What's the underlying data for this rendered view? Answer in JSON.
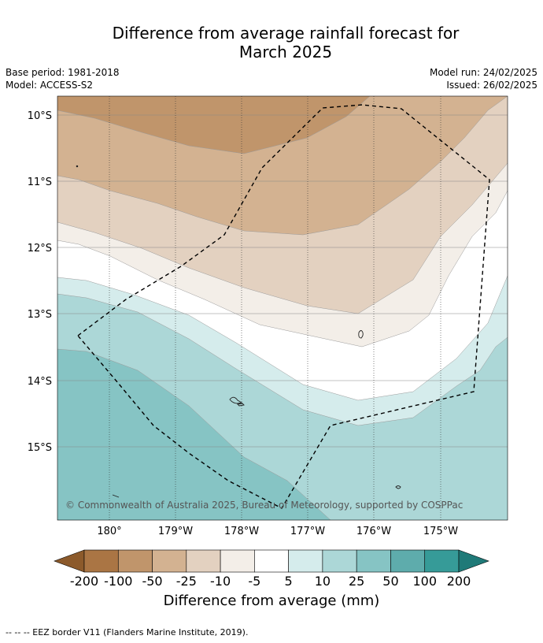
{
  "title_line1": "Difference from average rainfall forecast for",
  "title_line2": "March 2025",
  "base_period": "Base period: 1981-2018",
  "model": "Model: ACCESS-S2",
  "model_run": "Model run: 24/02/2025",
  "issued": "Issued: 26/02/2025",
  "latitudes": [
    "10°S",
    "11°S",
    "12°S",
    "13°S",
    "14°S",
    "15°S"
  ],
  "longitudes": [
    "180°",
    "179°W",
    "178°W",
    "177°W",
    "176°W",
    "175°W"
  ],
  "copyright": "© Commonwealth of Australia 2025, Bureau of Meteorology, supported by COSPPac",
  "colorbar": {
    "labels": [
      "-200",
      "-100",
      "-50",
      "-25",
      "-10",
      "-5",
      "5",
      "10",
      "25",
      "50",
      "100",
      "200"
    ],
    "colors": [
      "#8c5a2b",
      "#aa7544",
      "#c0956b",
      "#d3b291",
      "#e3d1c0",
      "#f3eee8",
      "#ffffff",
      "#d5ecec",
      "#acd7d7",
      "#86c4c4",
      "#5eacac",
      "#369b98",
      "#1f7a78"
    ],
    "title": "Difference from average (mm)"
  },
  "footnote": "--  --  -- EEZ border V11 (Flanders Marine Institute, 2019)."
}
